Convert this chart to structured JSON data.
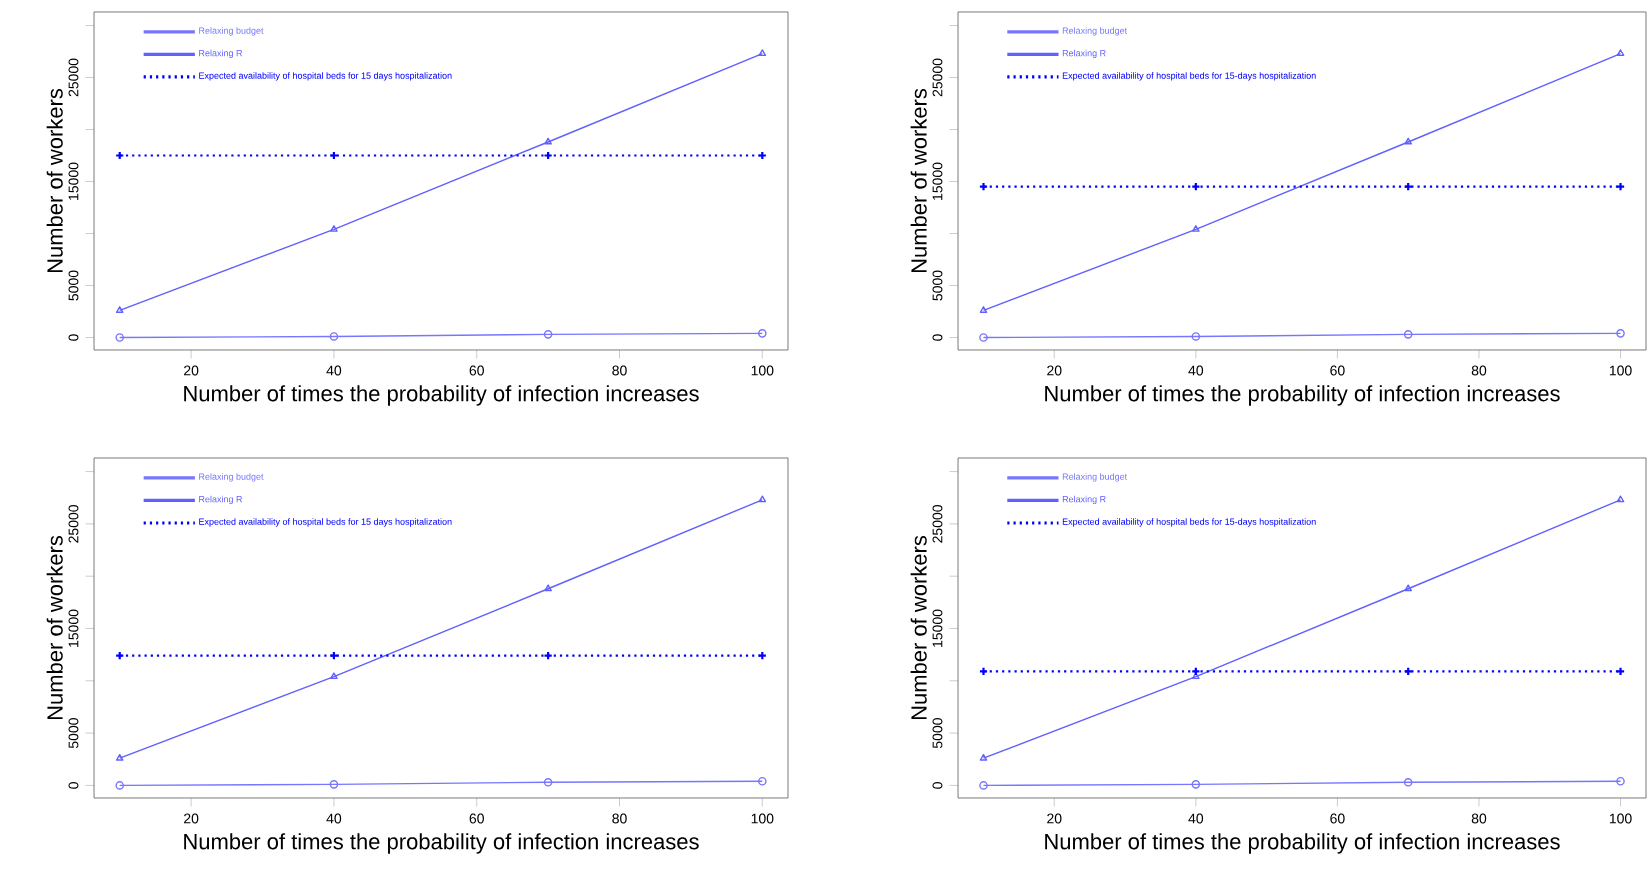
{
  "chart_data": [
    {
      "type": "line",
      "xlabel": "Number of times the probability of infection increases",
      "ylabel": "Number of workers",
      "x": [
        10,
        40,
        70,
        100
      ],
      "xlim": [
        6.4,
        103.6
      ],
      "ylim": [
        -1200,
        31300
      ],
      "xticks": [
        20,
        40,
        60,
        80,
        100
      ],
      "yticks": [
        0,
        5000,
        {
          "value": 10000,
          "label": null
        },
        15000,
        {
          "value": 20000,
          "label": null
        },
        25000,
        {
          "value": 30000,
          "label": null
        }
      ],
      "legend": "top left",
      "series": [
        {
          "name": "Relaxing budget",
          "color": "#7676ff",
          "marker": "circle",
          "line_style": "solid",
          "values": [
            0,
            100,
            300,
            400
          ]
        },
        {
          "name": "Relaxing R",
          "color": "#6060ff",
          "marker": "triangle",
          "line_style": "solid",
          "values": [
            2600,
            10400,
            18800,
            27300
          ]
        },
        {
          "name": "Expected availability of hospital beds for 15 days hospitalization",
          "color": "#0000ff",
          "marker": "cross",
          "line_style": "dotted",
          "values": [
            17500,
            17500,
            17500,
            17500
          ]
        }
      ]
    },
    {
      "type": "line",
      "xlabel": "Number of times the probability of infection increases",
      "ylabel": "Number of workers",
      "x": [
        10,
        40,
        70,
        100
      ],
      "xlim": [
        6.4,
        103.6
      ],
      "ylim": [
        -1200,
        31300
      ],
      "xticks": [
        20,
        40,
        60,
        80,
        100
      ],
      "yticks": [
        0,
        5000,
        {
          "value": 10000,
          "label": null
        },
        15000,
        {
          "value": 20000,
          "label": null
        },
        25000,
        {
          "value": 30000,
          "label": null
        }
      ],
      "legend": "top left",
      "series": [
        {
          "name": "Relaxing budget",
          "color": "#7676ff",
          "marker": "circle",
          "line_style": "solid",
          "values": [
            0,
            100,
            300,
            400
          ]
        },
        {
          "name": "Relaxing R",
          "color": "#6060ff",
          "marker": "triangle",
          "line_style": "solid",
          "values": [
            2600,
            10400,
            18800,
            27300
          ]
        },
        {
          "name": "Expected availability of hospital beds for 15-days hospitalization",
          "color": "#0000ff",
          "marker": "cross",
          "line_style": "dotted",
          "values": [
            14500,
            14500,
            14500,
            14500
          ]
        }
      ]
    },
    {
      "type": "line",
      "xlabel": "Number of times the probability of infection increases",
      "ylabel": "Number of workers",
      "x": [
        10,
        40,
        70,
        100
      ],
      "xlim": [
        6.4,
        103.6
      ],
      "ylim": [
        -1200,
        31300
      ],
      "xticks": [
        20,
        40,
        60,
        80,
        100
      ],
      "yticks": [
        0,
        5000,
        {
          "value": 10000,
          "label": null
        },
        15000,
        {
          "value": 20000,
          "label": null
        },
        25000,
        {
          "value": 30000,
          "label": null
        }
      ],
      "legend": "top left",
      "series": [
        {
          "name": "Relaxing budget",
          "color": "#7676ff",
          "marker": "circle",
          "line_style": "solid",
          "values": [
            0,
            100,
            300,
            400
          ]
        },
        {
          "name": "Relaxing R",
          "color": "#6060ff",
          "marker": "triangle",
          "line_style": "solid",
          "values": [
            2600,
            10400,
            18800,
            27300
          ]
        },
        {
          "name": "Expected availability of hospital beds for 15 days hospitalization",
          "color": "#0000ff",
          "marker": "cross",
          "line_style": "dotted",
          "values": [
            12400,
            12400,
            12400,
            12400
          ]
        }
      ]
    },
    {
      "type": "line",
      "xlabel": "Number of times the probability of infection increases",
      "ylabel": "Number of workers",
      "x": [
        10,
        40,
        70,
        100
      ],
      "xlim": [
        6.4,
        103.6
      ],
      "ylim": [
        -1200,
        31300
      ],
      "xticks": [
        20,
        40,
        60,
        80,
        100
      ],
      "yticks": [
        0,
        5000,
        {
          "value": 10000,
          "label": null
        },
        15000,
        {
          "value": 20000,
          "label": null
        },
        25000,
        {
          "value": 30000,
          "label": null
        }
      ],
      "legend": "top left",
      "series": [
        {
          "name": "Relaxing budget",
          "color": "#7676ff",
          "marker": "circle",
          "line_style": "solid",
          "values": [
            0,
            100,
            300,
            400
          ]
        },
        {
          "name": "Relaxing R",
          "color": "#6060ff",
          "marker": "triangle",
          "line_style": "solid",
          "values": [
            2600,
            10400,
            18800,
            27300
          ]
        },
        {
          "name": "Expected availability of hospital beds for 15-days hospitalization",
          "color": "#0000ff",
          "marker": "cross",
          "line_style": "dotted",
          "values": [
            10900,
            10900,
            10900,
            10900
          ]
        }
      ]
    }
  ]
}
